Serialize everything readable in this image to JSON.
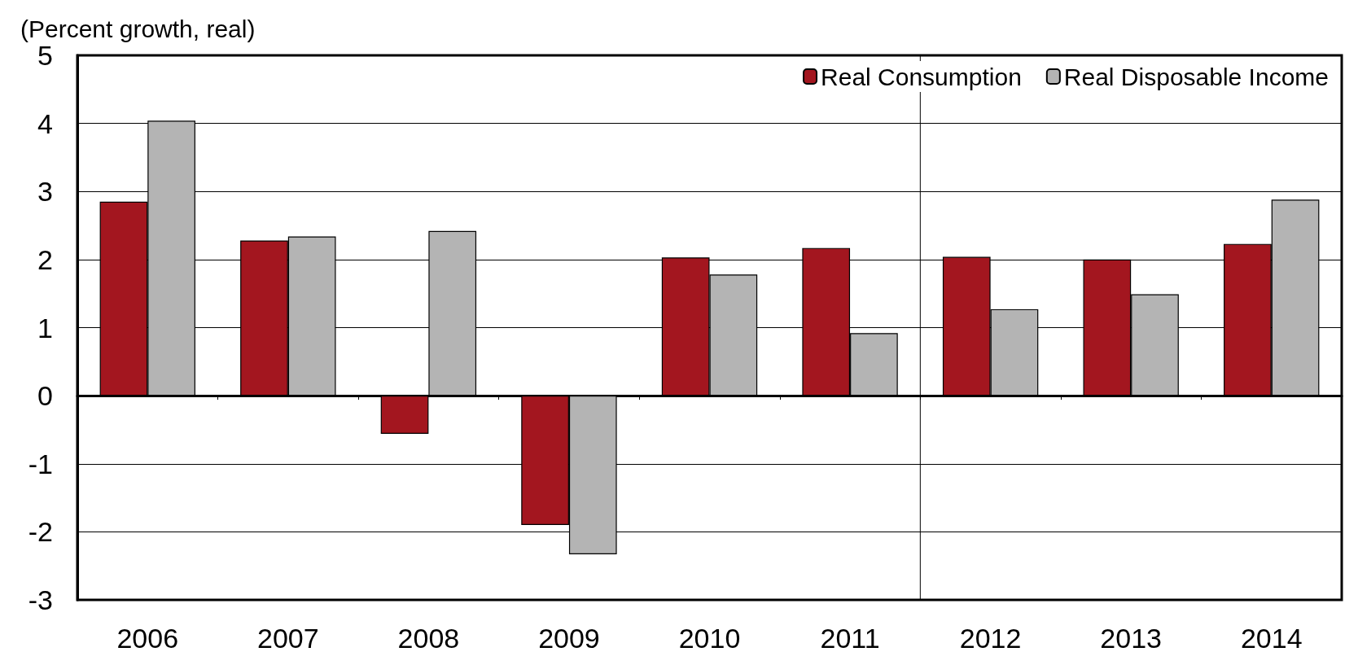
{
  "chart_data": {
    "type": "bar",
    "ylabel": "(Percent growth, real)",
    "categories": [
      "2006",
      "2007",
      "2008",
      "2009",
      "2010",
      "2011",
      "2012",
      "2013",
      "2014"
    ],
    "series": [
      {
        "name": "Real Consumption",
        "color": "#a3161f",
        "values": [
          2.85,
          2.28,
          -0.56,
          -1.9,
          2.03,
          2.17,
          2.04,
          2.0,
          2.23
        ]
      },
      {
        "name": "Real Disposable Income",
        "color": "#b4b4b4",
        "values": [
          4.04,
          2.34,
          2.42,
          -2.33,
          1.78,
          0.92,
          1.27,
          1.49,
          2.88
        ]
      }
    ],
    "ylim": [
      -3,
      5
    ],
    "yticks": [
      -3,
      -2,
      -1,
      0,
      1,
      2,
      3,
      4,
      5
    ],
    "grid": "y",
    "legend": "top right"
  }
}
